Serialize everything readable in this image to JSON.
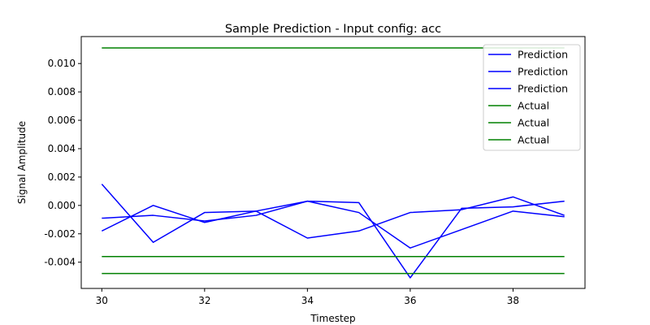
{
  "chart_data": {
    "type": "line",
    "title": "Sample Prediction - Input config: acc",
    "xlabel": "Timestep",
    "ylabel": "Signal Amplitude",
    "x": [
      30,
      31,
      32,
      33,
      34,
      35,
      36,
      37,
      38,
      39
    ],
    "xlim": [
      29.6,
      39.4
    ],
    "ylim": [
      -0.00585,
      0.0119
    ],
    "xticks": [
      30,
      32,
      34,
      36,
      38
    ],
    "yticks": [
      -0.004,
      -0.002,
      0.0,
      0.002,
      0.004,
      0.006,
      0.008,
      0.01
    ],
    "grid": false,
    "legend_position": "top-right",
    "series": [
      {
        "name": "Prediction",
        "color": "#0000ff",
        "values": [
          0.0015,
          -0.0026,
          -0.0005,
          -0.0004,
          -0.0023,
          -0.0018,
          -0.0005,
          -0.0003,
          0.0006,
          -0.0007
        ]
      },
      {
        "name": "Prediction",
        "color": "#0000ff",
        "values": [
          -0.0009,
          -0.0007,
          -0.0011,
          -0.0007,
          0.0003,
          -0.0005,
          -0.003,
          -0.0017,
          -0.0004,
          -0.0008
        ]
      },
      {
        "name": "Prediction",
        "color": "#0000ff",
        "values": [
          -0.0018,
          0.0,
          -0.0012,
          -0.0004,
          0.0003,
          0.0002,
          -0.0051,
          -0.0002,
          -0.0001,
          0.0003
        ]
      },
      {
        "name": "Actual",
        "color": "#008000",
        "values": [
          0.0111,
          0.0111,
          0.0111,
          0.0111,
          0.0111,
          0.0111,
          0.0111,
          0.0111,
          0.0111,
          0.0111
        ]
      },
      {
        "name": "Actual",
        "color": "#008000",
        "values": [
          -0.0036,
          -0.0036,
          -0.0036,
          -0.0036,
          -0.0036,
          -0.0036,
          -0.0036,
          -0.0036,
          -0.0036,
          -0.0036
        ]
      },
      {
        "name": "Actual",
        "color": "#008000",
        "values": [
          -0.0048,
          -0.0048,
          -0.0048,
          -0.0048,
          -0.0048,
          -0.0048,
          -0.0048,
          -0.0048,
          -0.0048,
          -0.0048
        ]
      }
    ]
  }
}
